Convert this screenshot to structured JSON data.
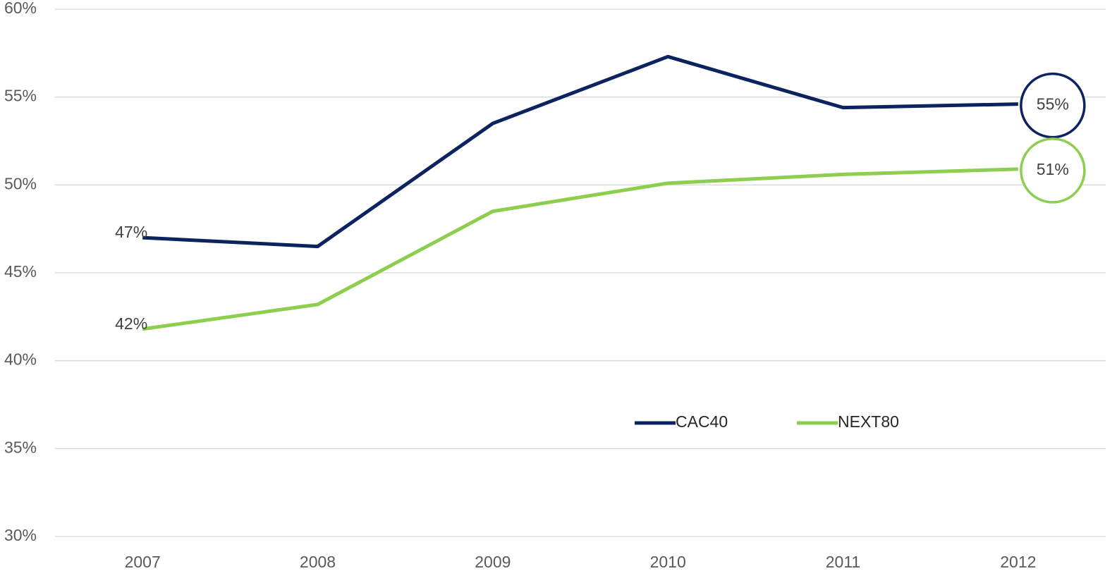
{
  "chart_data": {
    "type": "line",
    "categories": [
      "2007",
      "2008",
      "2009",
      "2010",
      "2011",
      "2012"
    ],
    "series": [
      {
        "name": "CAC40",
        "color": "#0d2360",
        "values": [
          47.0,
          46.5,
          53.5,
          57.3,
          54.4,
          54.6
        ],
        "value_labels": [
          "47%",
          null,
          null,
          null,
          null,
          "55%"
        ]
      },
      {
        "name": "NEXT80",
        "color": "#8dce4f",
        "values": [
          41.8,
          43.2,
          48.5,
          50.1,
          50.6,
          50.9
        ],
        "value_labels": [
          "42%",
          null,
          null,
          null,
          null,
          "51%"
        ]
      }
    ],
    "ylim": [
      30,
      60
    ],
    "yticks": [
      {
        "value": 30,
        "label": "30%"
      },
      {
        "value": 35,
        "label": "35%"
      },
      {
        "value": 40,
        "label": "40%"
      },
      {
        "value": 45,
        "label": "45%"
      },
      {
        "value": 50,
        "label": "50%"
      },
      {
        "value": 55,
        "label": "55%"
      },
      {
        "value": 60,
        "label": "60%"
      }
    ],
    "grid": true
  }
}
